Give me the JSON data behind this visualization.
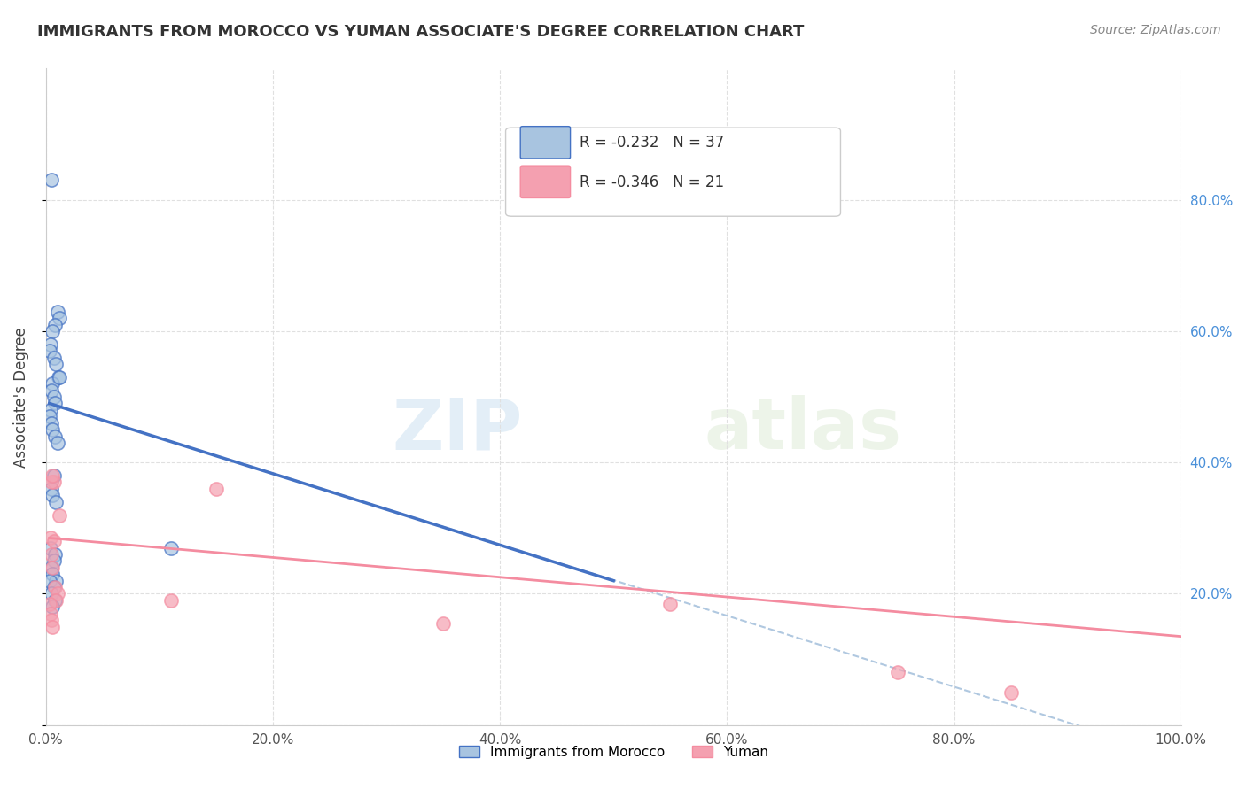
{
  "title": "IMMIGRANTS FROM MOROCCO VS YUMAN ASSOCIATE'S DEGREE CORRELATION CHART",
  "source": "Source: ZipAtlas.com",
  "ylabel": "Associate's Degree",
  "xlim": [
    0,
    1.0
  ],
  "ylim": [
    0,
    1.0
  ],
  "xtick_labels": [
    "0.0%",
    "20.0%",
    "40.0%",
    "60.0%",
    "80.0%",
    "100.0%"
  ],
  "xtick_vals": [
    0.0,
    0.2,
    0.4,
    0.6,
    0.8,
    1.0
  ],
  "ytick_vals_right": [
    0.2,
    0.4,
    0.6,
    0.8
  ],
  "ytick_labels_right": [
    "20.0%",
    "40.0%",
    "60.0%",
    "80.0%"
  ],
  "legend_r_blue": "-0.232",
  "legend_n_blue": "37",
  "legend_r_pink": "-0.346",
  "legend_n_pink": "21",
  "blue_scatter_x": [
    0.005,
    0.01,
    0.012,
    0.008,
    0.006,
    0.004,
    0.003,
    0.007,
    0.009,
    0.011,
    0.006,
    0.005,
    0.007,
    0.008,
    0.004,
    0.003,
    0.005,
    0.006,
    0.008,
    0.01,
    0.012,
    0.007,
    0.005,
    0.006,
    0.009,
    0.004,
    0.008,
    0.007,
    0.005,
    0.006,
    0.009,
    0.11,
    0.003,
    0.007,
    0.005,
    0.008,
    0.006
  ],
  "blue_scatter_y": [
    0.83,
    0.63,
    0.62,
    0.61,
    0.6,
    0.58,
    0.57,
    0.56,
    0.55,
    0.53,
    0.52,
    0.51,
    0.5,
    0.49,
    0.48,
    0.47,
    0.46,
    0.45,
    0.44,
    0.43,
    0.53,
    0.38,
    0.36,
    0.35,
    0.34,
    0.27,
    0.26,
    0.25,
    0.24,
    0.23,
    0.22,
    0.27,
    0.22,
    0.21,
    0.2,
    0.19,
    0.18
  ],
  "pink_scatter_x": [
    0.004,
    0.005,
    0.006,
    0.008,
    0.01,
    0.007,
    0.005,
    0.012,
    0.15,
    0.006,
    0.009,
    0.11,
    0.003,
    0.004,
    0.005,
    0.006,
    0.35,
    0.55,
    0.007,
    0.75,
    0.85
  ],
  "pink_scatter_y": [
    0.285,
    0.26,
    0.24,
    0.21,
    0.2,
    0.37,
    0.37,
    0.32,
    0.36,
    0.38,
    0.19,
    0.19,
    0.185,
    0.17,
    0.16,
    0.15,
    0.155,
    0.185,
    0.28,
    0.08,
    0.05
  ],
  "blue_line_x": [
    0.003,
    0.5
  ],
  "blue_line_y": [
    0.49,
    0.22
  ],
  "pink_line_x": [
    0.003,
    1.0
  ],
  "pink_line_y": [
    0.285,
    0.135
  ],
  "dashed_line_x": [
    0.003,
    1.0
  ],
  "dashed_line_y": [
    0.49,
    -0.05
  ],
  "blue_dot_color": "#a8c4e0",
  "pink_dot_color": "#f4a0b0",
  "blue_line_color": "#4472c4",
  "pink_line_color": "#f48ca0",
  "dashed_line_color": "#b0c8e0",
  "watermark_zip": "ZIP",
  "watermark_atlas": "atlas",
  "background_color": "#ffffff",
  "grid_color": "#e0e0e0",
  "bottom_legend_labels": [
    "Immigrants from Morocco",
    "Yuman"
  ]
}
